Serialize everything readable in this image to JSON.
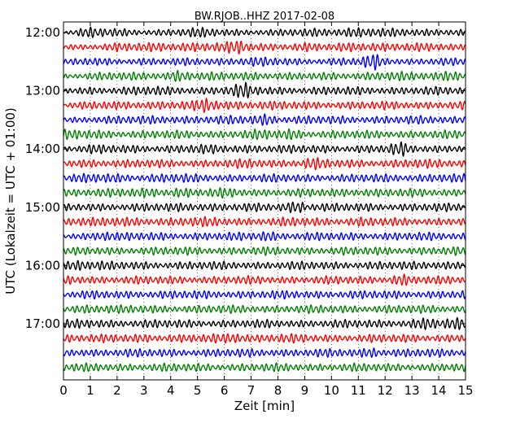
{
  "chart_data": {
    "type": "line",
    "title": "BW.RJOB..HHZ 2017-02-08",
    "xlabel": "Zeit  [min]",
    "ylabel": "UTC (Lokalzeit = UTC + 01:00)",
    "xlim": [
      0,
      15
    ],
    "x_ticks": [
      "0",
      "1",
      "2",
      "3",
      "4",
      "5",
      "6",
      "7",
      "8",
      "9",
      "10",
      "11",
      "12",
      "13",
      "14",
      "15"
    ],
    "y_ticks": [
      "12:00",
      "13:00",
      "14:00",
      "15:00",
      "16:00",
      "17:00"
    ],
    "trace_start": "12:00",
    "trace_interval_minutes": 15,
    "trace_count": 24,
    "trace_colors": [
      "#000000",
      "#ff0000",
      "#0000ff",
      "#008000"
    ],
    "grid": true,
    "series": [
      {
        "start": "12:00",
        "x": [
          0,
          1,
          1.8,
          3,
          4.2,
          5,
          6,
          7,
          8.2,
          9,
          10,
          11,
          12,
          13,
          14,
          15
        ],
        "values": [
          0.2,
          0.7,
          0.5,
          0.4,
          0.5,
          0.6,
          0.5,
          0.4,
          0.4,
          0.5,
          0.6,
          0.7,
          0.5,
          0.5,
          0.5,
          0.4
        ]
      },
      {
        "start": "12:15",
        "x": [
          0,
          1,
          2,
          3,
          4,
          5,
          6,
          6.6,
          7,
          8,
          9,
          10,
          11,
          12,
          13,
          14,
          15
        ],
        "values": [
          0.3,
          0.4,
          0.6,
          0.5,
          0.6,
          0.7,
          0.6,
          0.9,
          0.5,
          0.5,
          0.6,
          0.4,
          0.7,
          0.6,
          0.5,
          0.5,
          0.4
        ]
      },
      {
        "start": "12:30",
        "x": [
          0,
          1,
          2,
          3,
          4,
          5,
          6,
          7,
          8,
          9,
          10,
          11,
          11.6,
          12,
          13,
          14,
          15
        ],
        "values": [
          0.3,
          0.5,
          0.4,
          0.5,
          0.4,
          0.5,
          0.5,
          0.6,
          0.5,
          0.4,
          0.5,
          0.5,
          1.0,
          0.5,
          0.4,
          0.5,
          0.4
        ]
      },
      {
        "start": "12:45",
        "x": [
          0,
          1,
          2,
          3,
          4,
          4.1,
          5,
          6,
          7,
          8,
          9,
          10,
          11,
          12,
          13,
          14,
          14.6,
          15
        ],
        "values": [
          0.3,
          0.5,
          0.5,
          0.5,
          0.6,
          0.9,
          0.5,
          0.5,
          0.6,
          0.5,
          0.4,
          0.5,
          0.5,
          0.6,
          0.5,
          0.6,
          0.9,
          0.5
        ]
      },
      {
        "start": "13:00",
        "x": [
          0,
          1,
          2,
          3,
          4,
          5,
          6,
          6.8,
          7,
          8,
          9,
          10,
          11,
          12,
          13,
          14,
          15
        ],
        "values": [
          0.3,
          0.5,
          0.5,
          0.6,
          0.5,
          0.5,
          0.6,
          1.0,
          0.6,
          0.5,
          0.5,
          0.5,
          0.5,
          0.5,
          0.5,
          0.5,
          0.5
        ]
      },
      {
        "start": "13:15",
        "x": [
          0,
          1,
          2,
          3,
          4,
          5,
          5.3,
          6,
          7,
          8,
          9,
          10,
          11,
          12,
          13,
          14,
          15
        ],
        "values": [
          0.3,
          0.5,
          0.5,
          0.6,
          0.5,
          0.6,
          1.0,
          0.6,
          0.6,
          0.5,
          0.5,
          0.5,
          0.5,
          0.5,
          0.5,
          0.5,
          0.5
        ]
      },
      {
        "start": "13:30",
        "x": [
          0,
          1,
          2,
          3,
          4,
          5,
          6,
          7,
          7.6,
          8,
          9,
          10,
          11,
          12,
          13,
          14,
          15
        ],
        "values": [
          0.3,
          0.5,
          0.5,
          0.5,
          0.6,
          0.5,
          0.5,
          0.6,
          0.9,
          0.5,
          0.5,
          0.5,
          0.5,
          0.5,
          0.5,
          0.5,
          0.5
        ]
      },
      {
        "start": "13:45",
        "x": [
          0,
          1,
          2,
          3,
          4,
          5,
          6,
          7,
          8,
          8.5,
          9,
          10,
          11,
          12,
          13,
          14,
          15
        ],
        "values": [
          0.6,
          0.6,
          0.5,
          0.5,
          0.5,
          0.5,
          0.5,
          0.6,
          0.6,
          0.8,
          0.5,
          0.5,
          0.5,
          0.5,
          0.5,
          0.5,
          0.5
        ]
      },
      {
        "start": "14:00",
        "x": [
          0,
          1,
          2,
          3,
          4,
          5,
          6,
          7,
          8,
          9,
          10,
          11,
          12,
          12.6,
          13,
          14,
          15
        ],
        "values": [
          0.4,
          0.6,
          0.5,
          0.5,
          0.5,
          0.6,
          0.5,
          0.6,
          0.5,
          0.5,
          0.5,
          0.5,
          0.5,
          0.9,
          0.5,
          0.5,
          0.5
        ]
      },
      {
        "start": "14:15",
        "x": [
          0,
          1,
          2,
          3,
          4,
          5,
          6,
          7,
          8,
          9,
          9.1,
          10,
          11,
          12,
          13,
          14,
          15
        ],
        "values": [
          0.4,
          0.6,
          0.5,
          0.5,
          0.5,
          0.5,
          0.5,
          0.6,
          0.5,
          0.6,
          0.9,
          0.5,
          0.5,
          0.5,
          0.6,
          0.5,
          0.5
        ]
      },
      {
        "start": "14:30",
        "x": [
          0,
          1,
          2,
          3,
          4,
          5,
          6,
          7,
          8,
          9,
          10,
          11,
          12,
          13,
          14,
          15
        ],
        "values": [
          0.4,
          0.6,
          0.6,
          0.5,
          0.6,
          0.5,
          0.5,
          0.5,
          0.5,
          0.5,
          0.5,
          0.5,
          0.5,
          0.5,
          0.6,
          0.5
        ]
      },
      {
        "start": "14:45",
        "x": [
          0,
          1,
          2,
          3,
          4,
          4.1,
          5,
          6,
          7,
          8,
          9,
          10,
          11,
          12,
          13,
          14,
          15
        ],
        "values": [
          0.5,
          0.6,
          0.5,
          0.6,
          0.6,
          0.8,
          0.5,
          0.6,
          0.5,
          0.5,
          0.5,
          0.5,
          0.6,
          0.5,
          0.5,
          0.5,
          0.5
        ]
      },
      {
        "start": "15:00",
        "x": [
          0,
          1,
          2,
          3,
          4,
          5,
          6,
          7,
          8,
          8.9,
          9,
          10,
          11,
          12,
          13,
          14,
          15
        ],
        "values": [
          0.4,
          0.5,
          0.5,
          0.5,
          0.5,
          0.6,
          0.5,
          0.5,
          0.5,
          1.0,
          0.6,
          0.5,
          0.5,
          0.5,
          0.5,
          0.5,
          0.5
        ]
      },
      {
        "start": "15:15",
        "x": [
          0,
          1,
          2,
          3,
          4,
          5,
          6,
          7,
          8,
          9,
          10,
          11,
          12,
          13,
          14,
          15
        ],
        "values": [
          0.7,
          0.5,
          0.6,
          0.6,
          0.5,
          0.6,
          0.6,
          0.5,
          0.5,
          0.6,
          0.5,
          0.6,
          0.5,
          0.5,
          0.5,
          0.5
        ]
      },
      {
        "start": "15:30",
        "x": [
          0,
          1,
          1.5,
          2,
          3,
          4,
          5,
          6,
          7,
          7.6,
          8,
          9,
          10,
          11,
          12,
          13,
          14,
          15
        ],
        "values": [
          0.3,
          0.5,
          0.9,
          0.5,
          0.5,
          0.5,
          0.5,
          0.5,
          0.5,
          0.9,
          0.5,
          0.5,
          0.5,
          0.5,
          0.5,
          0.5,
          0.5,
          0.5
        ]
      },
      {
        "start": "15:45",
        "x": [
          0,
          1,
          2,
          3,
          4,
          5,
          6,
          7,
          8,
          9,
          10,
          11,
          12,
          13,
          14,
          15
        ],
        "values": [
          0.4,
          0.5,
          0.5,
          0.5,
          0.5,
          0.5,
          0.5,
          0.5,
          0.5,
          0.5,
          0.5,
          0.5,
          0.5,
          0.5,
          0.5,
          0.5
        ]
      },
      {
        "start": "16:00",
        "x": [
          0,
          0.7,
          1,
          2,
          3,
          4,
          5,
          6,
          7,
          8,
          9,
          10,
          11,
          12,
          13,
          14,
          15
        ],
        "values": [
          0.5,
          1.0,
          0.6,
          0.5,
          0.5,
          0.5,
          0.5,
          0.5,
          0.5,
          0.5,
          0.5,
          0.5,
          0.5,
          0.5,
          0.5,
          0.6,
          0.5
        ]
      },
      {
        "start": "16:15",
        "x": [
          0,
          1,
          2,
          3,
          4,
          5,
          6,
          7,
          8,
          9,
          10,
          11,
          12,
          12.6,
          13,
          14,
          15
        ],
        "values": [
          0.6,
          0.5,
          0.5,
          0.5,
          0.5,
          0.5,
          0.5,
          0.5,
          0.5,
          0.5,
          0.5,
          0.5,
          0.5,
          0.9,
          0.5,
          0.5,
          0.5
        ]
      },
      {
        "start": "16:30",
        "x": [
          0,
          1,
          2,
          3,
          4,
          5,
          6,
          7,
          8,
          9,
          10,
          11,
          12,
          13,
          14,
          15
        ],
        "values": [
          0.4,
          0.5,
          0.5,
          0.5,
          0.5,
          0.5,
          0.5,
          0.5,
          0.5,
          0.5,
          0.5,
          0.5,
          0.5,
          0.5,
          0.5,
          0.5
        ]
      },
      {
        "start": "16:45",
        "x": [
          0,
          1,
          2,
          3,
          4,
          5,
          6,
          7,
          8,
          9,
          10,
          11,
          12,
          13,
          14,
          15
        ],
        "values": [
          0.4,
          0.7,
          0.5,
          0.5,
          0.5,
          0.5,
          0.5,
          0.5,
          0.5,
          0.5,
          0.5,
          0.5,
          0.5,
          0.5,
          0.5,
          0.5
        ]
      },
      {
        "start": "17:00",
        "x": [
          0,
          1,
          2,
          3,
          4,
          5,
          6,
          7,
          8,
          9,
          10,
          11,
          12,
          13,
          13.7,
          14,
          15
        ],
        "values": [
          0.5,
          0.6,
          0.5,
          0.5,
          0.5,
          0.5,
          0.5,
          0.5,
          0.5,
          0.5,
          0.5,
          0.5,
          0.5,
          0.6,
          0.9,
          0.5,
          0.8
        ]
      },
      {
        "start": "17:15",
        "x": [
          0,
          1,
          2,
          3,
          4,
          5,
          6,
          6.3,
          7,
          8,
          9,
          10,
          11,
          12,
          13,
          14,
          15
        ],
        "values": [
          0.6,
          0.5,
          0.5,
          0.6,
          0.5,
          0.5,
          0.6,
          1.0,
          0.5,
          0.6,
          0.5,
          0.5,
          0.5,
          0.5,
          0.5,
          0.5,
          0.5
        ]
      },
      {
        "start": "17:30",
        "x": [
          0,
          1,
          2,
          3,
          4,
          5,
          6,
          7,
          8,
          9,
          10,
          11,
          11.6,
          12,
          13,
          14,
          15
        ],
        "values": [
          0.5,
          0.5,
          0.5,
          0.5,
          0.5,
          0.5,
          0.5,
          0.5,
          0.5,
          0.5,
          0.5,
          0.5,
          0.9,
          0.5,
          0.5,
          0.5,
          0.5
        ]
      },
      {
        "start": "17:45",
        "x": [
          0,
          1,
          2,
          3,
          4,
          5,
          6,
          7,
          8,
          9,
          10,
          11,
          12,
          13,
          14,
          15
        ],
        "values": [
          0.5,
          0.5,
          0.5,
          0.5,
          0.5,
          0.5,
          0.5,
          0.5,
          0.5,
          0.5,
          0.5,
          0.5,
          0.5,
          0.5,
          0.5,
          0.5
        ]
      }
    ]
  }
}
